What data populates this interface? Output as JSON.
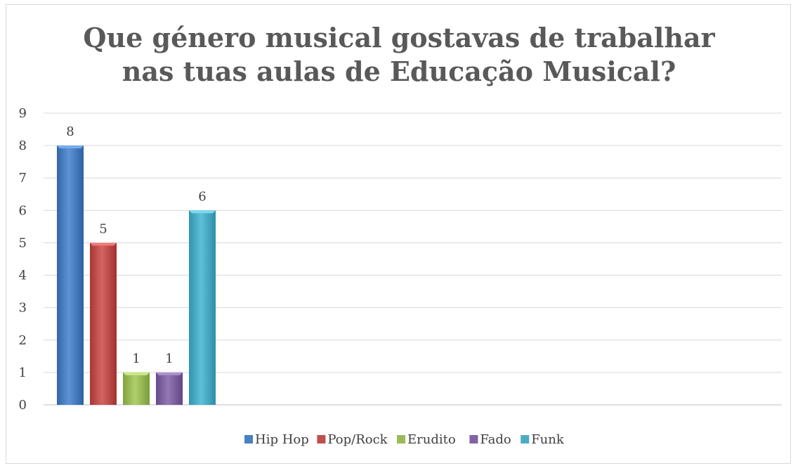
{
  "chart_data": {
    "type": "bar",
    "title": "Que género musical gostavas de trabalhar nas tuas aulas de Educação Musical?",
    "title_lines": [
      "Que género musical gostavas de trabalhar",
      "nas tuas aulas de Educação Musical?"
    ],
    "series": [
      {
        "name": "Hip Hop",
        "values": [
          8
        ],
        "color": "#4a7fc1"
      },
      {
        "name": "Pop/Rock",
        "values": [
          5
        ],
        "color": "#c0504d"
      },
      {
        "name": "Erudito",
        "values": [
          1
        ],
        "color": "#9bbb59"
      },
      {
        "name": "Fado",
        "values": [
          1
        ],
        "color": "#8064a2"
      },
      {
        "name": "Funk",
        "values": [
          6
        ],
        "color": "#4bacc6"
      }
    ],
    "ylim": [
      0,
      9
    ],
    "yticks": [
      0,
      1,
      2,
      3,
      4,
      5,
      6,
      7,
      8,
      9
    ],
    "grid": true,
    "legend_position": "bottom",
    "data_labels": true
  }
}
